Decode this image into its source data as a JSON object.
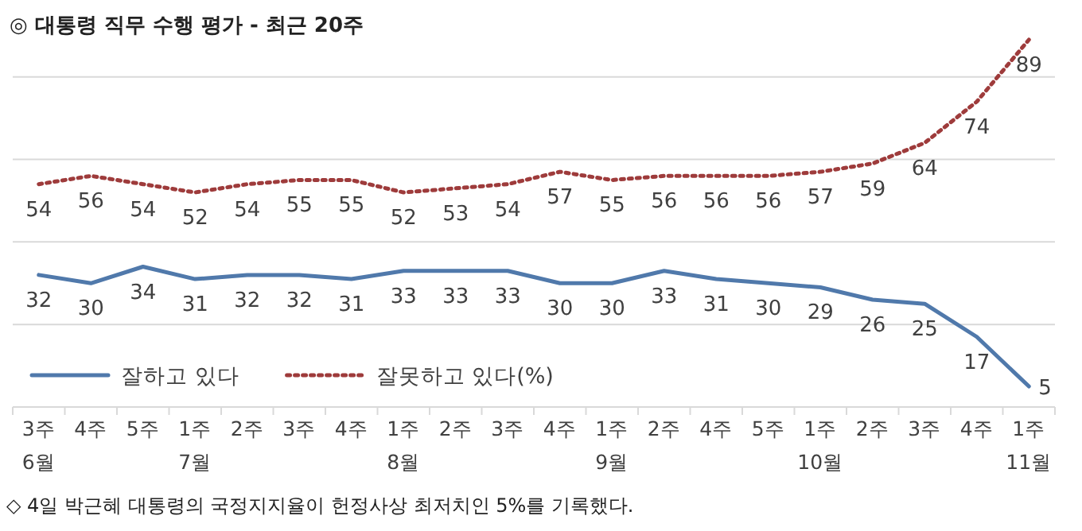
{
  "chart_data": {
    "type": "line",
    "title": "◎  대통령 직무 수행 평가 - 최근 20주",
    "categories": [
      "3주\n6월",
      "4주",
      "5주",
      "1주\n7월",
      "2주",
      "3주",
      "4주",
      "1주\n8월",
      "2주",
      "3주",
      "4주",
      "1주\n9월",
      "2주",
      "4주",
      "5주",
      "1주\n10월",
      "2주",
      "3주",
      "4주",
      "1주\n11월"
    ],
    "series": [
      {
        "name": "잘하고 있다",
        "color": "#5079ab",
        "line_style": "solid",
        "values": [
          32,
          30,
          34,
          31,
          32,
          32,
          31,
          33,
          33,
          33,
          30,
          30,
          33,
          31,
          30,
          29,
          26,
          25,
          17,
          5
        ]
      },
      {
        "name": "잘못하고 있다(%)",
        "color": "#9e3b3b",
        "line_style": "dotted",
        "values": [
          54,
          56,
          54,
          52,
          54,
          55,
          55,
          52,
          53,
          54,
          57,
          55,
          56,
          56,
          56,
          57,
          59,
          64,
          74,
          89
        ]
      }
    ],
    "yticks": [
      {
        "value": 20,
        "label": null
      },
      {
        "value": 40,
        "label": null
      },
      {
        "value": 60,
        "label": null
      },
      {
        "value": 80,
        "label": null
      }
    ],
    "tick_labels": "x",
    "grid": "y",
    "legend": "bottom left",
    "data_labels": true,
    "marker": "none",
    "annotations": [
      "◇ 4일 박근혜 대통령의 국정지지율이 헌정사상 최저치인 5%를 기록했다."
    ]
  }
}
